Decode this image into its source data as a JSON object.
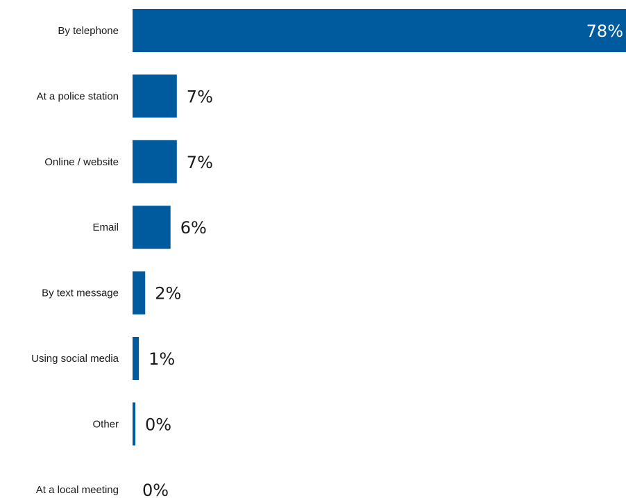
{
  "chart_data": {
    "type": "bar",
    "orientation": "horizontal",
    "categories": [
      "By telephone",
      "At a police station",
      "Online / website",
      "Email",
      "By text message",
      "Using social media",
      "Other",
      "At a local meeting"
    ],
    "values": [
      78,
      7,
      7,
      6,
      2,
      1,
      0,
      0
    ],
    "value_labels": [
      "78%",
      "7%",
      "7%",
      "6%",
      "2%",
      "1%",
      "0%",
      "0%"
    ],
    "xlim": [
      0,
      78
    ],
    "grid": false,
    "legend": "none",
    "colors": {
      "bar": "#005a9e",
      "text": "#1a1a1a",
      "inside_label": "#ffffff"
    }
  }
}
